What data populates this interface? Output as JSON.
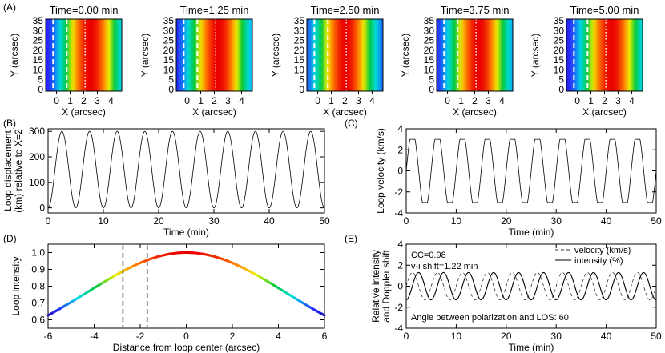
{
  "panel_labels": {
    "A": "(A)",
    "B": "(B)",
    "C": "(C)",
    "D": "(D)",
    "E": "(E)"
  },
  "colors": {
    "axis": "#000000",
    "line": "#000000",
    "background": "#ffffff"
  },
  "chart_data": [
    {
      "id": "A",
      "type": "heatmap",
      "description_colormap": "rainbow (blue-cyan-green-yellow-red), peak at loop centre",
      "frames": [
        {
          "title": "Time=0.00 min",
          "loop_center_x": 2.5,
          "dash_x": [
            -0.25,
            0.75
          ],
          "dot_x": 2.1
        },
        {
          "title": "Time=1.25 min",
          "loop_center_x": 2.3,
          "dash_x": [
            -0.25,
            0.75
          ],
          "dot_x": 2.1
        },
        {
          "title": "Time=2.50 min",
          "loop_center_x": 2.05,
          "dash_x": [
            -0.25,
            0.75
          ],
          "dot_x": 2.1
        },
        {
          "title": "Time=3.75 min",
          "loop_center_x": 2.3,
          "dash_x": [
            -0.25,
            0.75
          ],
          "dot_x": 2.1
        },
        {
          "title": "Time=5.00 min",
          "loop_center_x": 2.5,
          "dash_x": [
            -0.25,
            0.75
          ],
          "dot_x": 2.1
        }
      ],
      "xlabel": "X (arcsec)",
      "ylabel": "Y (arcsec)",
      "xlim": [
        -0.8,
        4.8
      ],
      "ylim": [
        0,
        35
      ],
      "xticks": [
        "0",
        "1",
        "2",
        "3",
        "4"
      ],
      "yticks": [
        "0",
        "5",
        "10",
        "15",
        "20",
        "25",
        "30",
        "35"
      ]
    },
    {
      "id": "B",
      "type": "line",
      "xlabel": "Time (min)",
      "ylabel_lines": [
        "Loop displacement",
        "(km) relative to X=2"
      ],
      "xlim": [
        0,
        50
      ],
      "ylim": [
        -20,
        310
      ],
      "xticks": [
        "0",
        "10",
        "20",
        "30",
        "40",
        "50"
      ],
      "yticks": [
        "0",
        "100",
        "200",
        "300"
      ],
      "series": [
        {
          "model": "sine",
          "period": 5.0,
          "phase_peak": 2.5,
          "offset": 150,
          "amplitude": 150
        }
      ]
    },
    {
      "id": "C",
      "type": "line",
      "xlabel": "Time (min)",
      "ylabel": "Loop velocity (km/s)",
      "xlim": [
        0,
        50
      ],
      "ylim": [
        -4,
        4
      ],
      "xticks": [
        "0",
        "10",
        "20",
        "30",
        "40",
        "50"
      ],
      "yticks": [
        "-4",
        "-2",
        "0",
        "2",
        "4"
      ],
      "series": [
        {
          "model": "clipped_sine",
          "period": 5.0,
          "phase_peak": 1.25,
          "amplitude": 3.8,
          "clip": 3.0
        }
      ]
    },
    {
      "id": "D",
      "type": "line",
      "xlabel": "Distance from loop center (arcsec)",
      "ylabel": "Loop intensity",
      "xlim": [
        -6,
        6
      ],
      "ylim": [
        0.55,
        1.05
      ],
      "xticks": [
        "-6",
        "-4",
        "-2",
        "0",
        "2",
        "4",
        "6"
      ],
      "yticks": [
        "0.6",
        "0.7",
        "0.8",
        "0.9",
        "1.0"
      ],
      "series": [
        {
          "model": "gaussian",
          "sigma": 4.3,
          "peak": 1.0,
          "baseline": 0.4
        }
      ],
      "vlines": [
        -2.75,
        -1.7
      ],
      "line_colormap": "rainbow, purple at edges to red at centre"
    },
    {
      "id": "E",
      "type": "line",
      "xlabel": "Time (min)",
      "ylabel_lines": [
        "Relative intensity",
        "and Doppler shift"
      ],
      "xlim": [
        0,
        50
      ],
      "ylim": [
        -4,
        4
      ],
      "xticks": [
        "0",
        "10",
        "20",
        "30",
        "40",
        "50"
      ],
      "yticks": [
        "-4",
        "-2",
        "0",
        "2",
        "4"
      ],
      "annotations": [
        "CC=0.98",
        "v-i shift=1.22 min",
        "Angle between polarization and LOS: 60"
      ],
      "legend": {
        "position": "top-right",
        "entries": [
          "velocity (km/s)",
          "intensity (%)"
        ]
      },
      "series": [
        {
          "name": "velocity (km/s)",
          "style": "dashed",
          "model": "sine",
          "period": 5.0,
          "phase_peak": 1.25,
          "amplitude": 1.3
        },
        {
          "name": "intensity (%)",
          "style": "solid",
          "model": "sine",
          "period": 5.0,
          "phase_peak": 2.47,
          "amplitude": 1.3
        }
      ]
    }
  ]
}
